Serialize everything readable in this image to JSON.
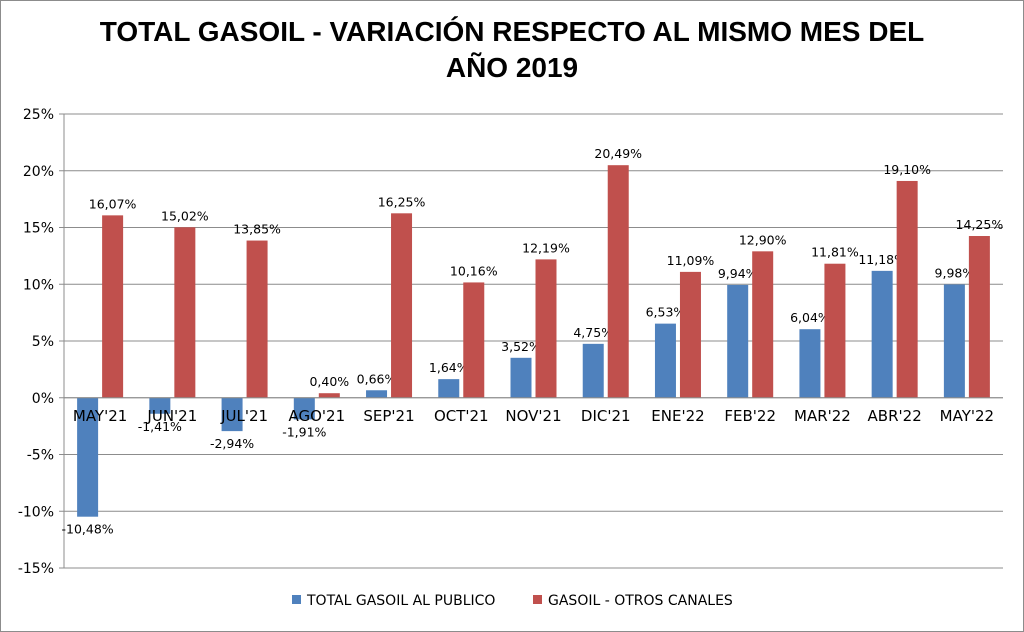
{
  "chart_data": {
    "type": "bar",
    "title_lines": [
      "TOTAL GASOIL - VARIACIÓN RESPECTO AL MISMO MES DEL",
      "AÑO 2019"
    ],
    "categories": [
      "MAY'21",
      "JUN'21",
      "JUL'21",
      "AGO'21",
      "SEP'21",
      "OCT'21",
      "NOV'21",
      "DIC'21",
      "ENE'22",
      "FEB'22",
      "MAR'22",
      "ABR'22",
      "MAY'22"
    ],
    "series": [
      {
        "name": "TOTAL GASOIL AL PUBLICO",
        "color": "#4f81bd",
        "values": [
          -10.48,
          -1.41,
          -2.94,
          -1.91,
          0.66,
          1.64,
          3.52,
          4.75,
          6.53,
          9.94,
          6.04,
          11.18,
          9.98
        ],
        "labels": [
          "-10,48%",
          "-1,41%",
          "-2,94%",
          "-1,91%",
          "0,66%",
          "1,64%",
          "3,52%",
          "4,75%",
          "6,53%",
          "9,94%",
          "6,04%",
          "11,18%",
          "9,98%"
        ]
      },
      {
        "name": "GASOIL - OTROS CANALES",
        "color": "#c0504d",
        "values": [
          16.07,
          15.02,
          13.85,
          0.4,
          16.25,
          10.16,
          12.19,
          20.49,
          11.09,
          12.9,
          11.81,
          19.1,
          14.25
        ],
        "labels": [
          "16,07%",
          "15,02%",
          "13,85%",
          "0,40%",
          "16,25%",
          "10,16%",
          "12,19%",
          "20,49%",
          "11,09%",
          "12,90%",
          "11,81%",
          "19,10%",
          "14,25%"
        ]
      }
    ],
    "ylim": [
      -15,
      25
    ],
    "yticks": [
      -15,
      -10,
      -5,
      0,
      5,
      10,
      15,
      20,
      25
    ],
    "ytick_labels": [
      "-15%",
      "-10%",
      "-5%",
      "0%",
      "5%",
      "10%",
      "15%",
      "20%",
      "25%"
    ],
    "grid": true,
    "legend": "bottom"
  }
}
